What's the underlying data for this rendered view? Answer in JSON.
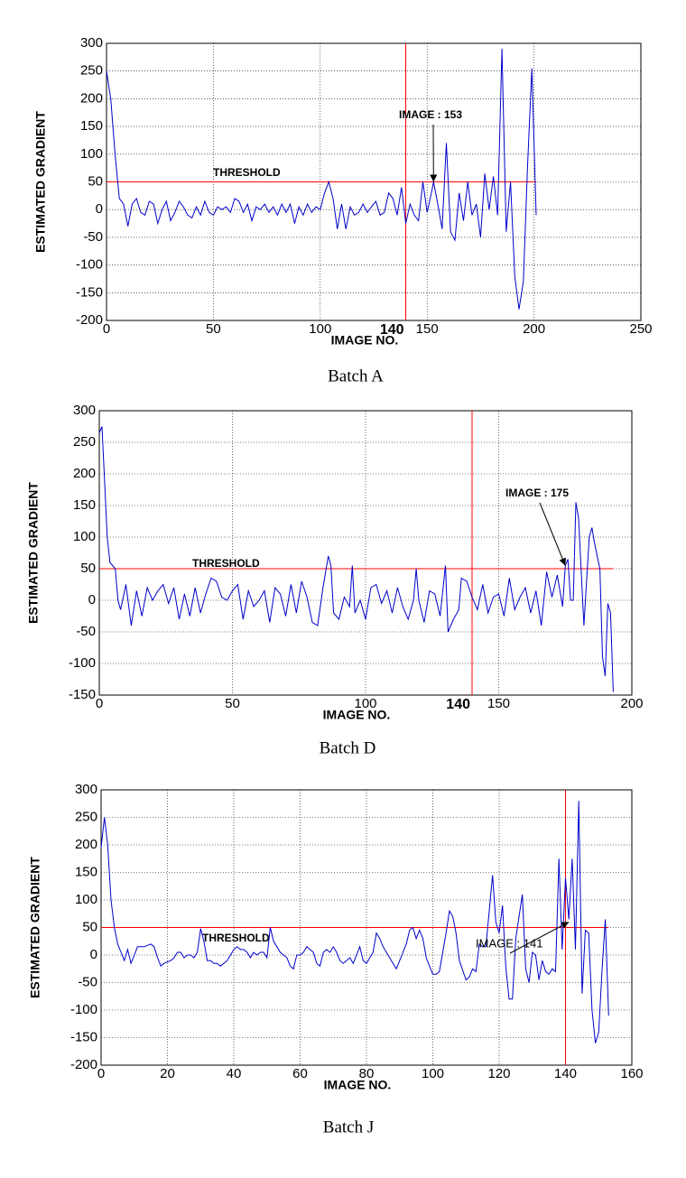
{
  "chart_data": [
    {
      "type": "line",
      "xlabel": "IMAGE NO.",
      "ylabel": "ESTIMATED GRADIENT",
      "caption": "Batch A",
      "xlim": [
        0,
        250
      ],
      "ylim": [
        -200,
        300
      ],
      "xticks": [
        0,
        50,
        100,
        150,
        200,
        250
      ],
      "yticks": [
        -200,
        -150,
        -100,
        -50,
        0,
        50,
        100,
        150,
        200,
        250,
        300
      ],
      "grid": true,
      "color": "#0000cc",
      "threshold": {
        "value": 50,
        "label": "THRESHOLD",
        "color": "#ff0000"
      },
      "vline": {
        "value": 140,
        "label": "140",
        "color": "#ff0000"
      },
      "annotation": {
        "text": "IMAGE : 153",
        "x": 153,
        "y": 50
      },
      "x": [
        0,
        2,
        4,
        6,
        8,
        10,
        12,
        14,
        16,
        18,
        20,
        22,
        24,
        26,
        28,
        30,
        32,
        34,
        36,
        38,
        40,
        42,
        44,
        46,
        48,
        50,
        52,
        54,
        56,
        58,
        60,
        62,
        64,
        66,
        68,
        70,
        72,
        74,
        76,
        78,
        80,
        82,
        84,
        86,
        88,
        90,
        92,
        94,
        96,
        98,
        100,
        102,
        104,
        106,
        108,
        110,
        112,
        114,
        116,
        118,
        120,
        122,
        124,
        126,
        128,
        130,
        132,
        134,
        136,
        138,
        140,
        142,
        144,
        146,
        148,
        150,
        152,
        153,
        155,
        157,
        159,
        161,
        163,
        165,
        167,
        169,
        171,
        173,
        175,
        177,
        179,
        181,
        183,
        185,
        187,
        189,
        191,
        193,
        195,
        197,
        199,
        201
      ],
      "values": [
        250,
        200,
        100,
        20,
        10,
        -30,
        10,
        20,
        -5,
        -10,
        15,
        10,
        -25,
        0,
        15,
        -20,
        -5,
        15,
        5,
        -10,
        -15,
        5,
        -10,
        15,
        -5,
        -10,
        5,
        0,
        5,
        -5,
        20,
        15,
        -5,
        10,
        -20,
        5,
        0,
        10,
        -5,
        5,
        -10,
        10,
        -5,
        10,
        -25,
        5,
        -10,
        10,
        -5,
        5,
        0,
        30,
        50,
        20,
        -35,
        10,
        -35,
        5,
        -10,
        -5,
        10,
        -5,
        5,
        15,
        -10,
        -5,
        30,
        20,
        -10,
        40,
        -25,
        10,
        -10,
        -20,
        50,
        -5,
        30,
        50,
        10,
        -35,
        120,
        -40,
        -55,
        30,
        -20,
        50,
        -10,
        10,
        -50,
        65,
        0,
        60,
        -10,
        290,
        -40,
        50,
        -120,
        -180,
        -130,
        80,
        255,
        -10
      ]
    },
    {
      "type": "line",
      "xlabel": "IMAGE NO.",
      "ylabel": "ESTIMATED GRADIENT",
      "caption": "Batch D",
      "xlim": [
        0,
        200
      ],
      "ylim": [
        -150,
        300
      ],
      "xticks": [
        0,
        50,
        100,
        150,
        200
      ],
      "yticks": [
        -150,
        -100,
        -50,
        0,
        50,
        100,
        150,
        200,
        250,
        300
      ],
      "grid": true,
      "color": "#0000cc",
      "threshold": {
        "value": 50,
        "label": "THRESHOLD",
        "color": "#ff0000"
      },
      "vline": {
        "value": 140,
        "label": "140",
        "color": "#ff0000"
      },
      "annotation": {
        "text": "IMAGE : 175",
        "x": 175,
        "y": 55
      },
      "x": [
        0,
        1,
        3,
        4,
        6,
        7,
        8,
        10,
        12,
        14,
        16,
        18,
        20,
        22,
        24,
        26,
        28,
        30,
        32,
        34,
        36,
        38,
        40,
        42,
        44,
        46,
        48,
        50,
        52,
        54,
        56,
        58,
        60,
        62,
        64,
        66,
        68,
        70,
        72,
        74,
        76,
        78,
        80,
        82,
        84,
        86,
        87,
        88,
        90,
        92,
        94,
        95,
        96,
        98,
        100,
        102,
        104,
        106,
        108,
        110,
        112,
        114,
        116,
        118,
        119,
        120,
        122,
        124,
        126,
        128,
        130,
        131,
        133,
        135,
        136,
        138,
        140,
        142,
        144,
        146,
        148,
        150,
        152,
        154,
        156,
        158,
        160,
        162,
        164,
        166,
        168,
        170,
        172,
        174,
        175,
        176,
        177,
        178,
        179,
        180,
        182,
        184,
        185,
        186,
        188,
        189,
        190,
        191,
        192,
        193
      ],
      "values": [
        265,
        275,
        100,
        60,
        50,
        0,
        -15,
        25,
        -40,
        15,
        -25,
        20,
        0,
        15,
        25,
        -5,
        20,
        -30,
        10,
        -25,
        20,
        -20,
        10,
        35,
        30,
        5,
        0,
        15,
        25,
        -30,
        15,
        -10,
        0,
        15,
        -35,
        20,
        10,
        -25,
        25,
        -20,
        30,
        5,
        -35,
        -40,
        20,
        70,
        55,
        -20,
        -30,
        5,
        -10,
        55,
        -20,
        0,
        -30,
        20,
        25,
        -5,
        15,
        -20,
        20,
        -10,
        -30,
        0,
        50,
        0,
        -35,
        15,
        10,
        -25,
        55,
        -50,
        -30,
        -15,
        35,
        30,
        5,
        -15,
        25,
        -20,
        5,
        10,
        -25,
        35,
        -15,
        5,
        20,
        -20,
        15,
        -40,
        45,
        5,
        40,
        -10,
        55,
        65,
        0,
        0,
        155,
        130,
        -40,
        100,
        115,
        90,
        50,
        -90,
        -120,
        -5,
        -20,
        -145
      ]
    },
    {
      "type": "line",
      "xlabel": "IMAGE NO.",
      "ylabel": "ESTIMATED GRADIENT",
      "caption": "Batch J",
      "xlim": [
        0,
        160
      ],
      "ylim": [
        -200,
        300
      ],
      "xticks": [
        0,
        20,
        40,
        60,
        80,
        100,
        120,
        140,
        160
      ],
      "yticks": [
        -200,
        -150,
        -100,
        -50,
        0,
        50,
        100,
        150,
        200,
        250,
        300
      ],
      "grid": true,
      "color": "#0000cc",
      "threshold": {
        "value": 50,
        "label": "THRESHOLD",
        "color": "#ff0000"
      },
      "vline": {
        "value": 140,
        "color": "#ff0000"
      },
      "annotation": {
        "text": "IMAGE : 141",
        "x": 141,
        "y": 60
      },
      "x": [
        0,
        1,
        2,
        3,
        4,
        5,
        6,
        7,
        8,
        9,
        10,
        11,
        13,
        15,
        16,
        17,
        18,
        19,
        21,
        22,
        23,
        24,
        25,
        26,
        27,
        28,
        29,
        30,
        31,
        32,
        33,
        34,
        35,
        36,
        37,
        38,
        40,
        41,
        42,
        43,
        44,
        45,
        46,
        47,
        48,
        49,
        50,
        51,
        52,
        53,
        54,
        56,
        57,
        58,
        59,
        60,
        61,
        62,
        63,
        64,
        65,
        66,
        67,
        68,
        69,
        70,
        71,
        72,
        73,
        74,
        75,
        76,
        77,
        78,
        79,
        80,
        81,
        82,
        83,
        84,
        85,
        86,
        87,
        88,
        89,
        90,
        91,
        92,
        93,
        94,
        95,
        96,
        97,
        98,
        99,
        100,
        101,
        102,
        103,
        104,
        105,
        106,
        107,
        108,
        110,
        111,
        112,
        113,
        114,
        115,
        116,
        118,
        119,
        120,
        121,
        122,
        123,
        124,
        125,
        127,
        128,
        129,
        130,
        131,
        132,
        133,
        134,
        135,
        136,
        137,
        138,
        139,
        140,
        141,
        142,
        143,
        144,
        145,
        146,
        147,
        148,
        149,
        150,
        151,
        152,
        153
      ],
      "values": [
        195,
        250,
        200,
        100,
        50,
        20,
        5,
        -10,
        10,
        -15,
        0,
        15,
        15,
        20,
        15,
        -5,
        -20,
        -15,
        -10,
        -5,
        5,
        5,
        -5,
        0,
        0,
        -5,
        5,
        48,
        25,
        -10,
        -10,
        -15,
        -15,
        -20,
        -15,
        -10,
        10,
        15,
        10,
        10,
        5,
        -5,
        5,
        0,
        5,
        5,
        -5,
        50,
        25,
        15,
        5,
        -5,
        -20,
        -25,
        0,
        0,
        5,
        15,
        10,
        5,
        -15,
        -20,
        5,
        10,
        5,
        15,
        5,
        -10,
        -15,
        -10,
        -5,
        -15,
        0,
        15,
        -10,
        -15,
        -5,
        5,
        40,
        30,
        15,
        5,
        -5,
        -15,
        -25,
        -10,
        5,
        20,
        45,
        50,
        30,
        45,
        30,
        -5,
        -20,
        -35,
        -35,
        -30,
        5,
        40,
        80,
        70,
        40,
        -10,
        -45,
        -40,
        -25,
        -30,
        20,
        15,
        15,
        145,
        60,
        40,
        90,
        -20,
        -80,
        -80,
        30,
        110,
        -25,
        -50,
        5,
        0,
        -45,
        -10,
        -30,
        -35,
        -25,
        -30,
        175,
        10,
        140,
        65,
        175,
        10,
        280,
        -70,
        45,
        40,
        -100,
        -160,
        -140,
        -30,
        65,
        -110
      ]
    }
  ]
}
